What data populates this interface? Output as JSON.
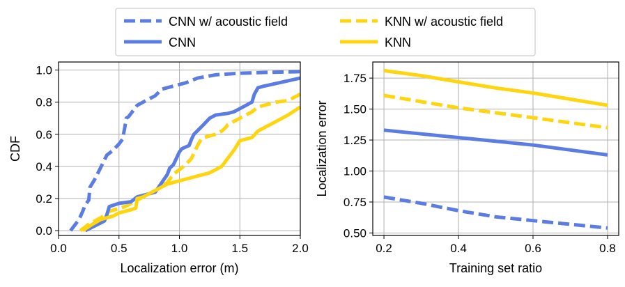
{
  "colors": {
    "cnn": "#5b7de3",
    "knn": "#ffd50f",
    "grid": "#b0b0b0",
    "axis": "#000000"
  },
  "legend": {
    "entries": [
      {
        "label": "CNN w/ acoustic field",
        "color": "#5b7de3",
        "style": "dashed"
      },
      {
        "label": "KNN w/ acoustic field",
        "color": "#ffd50f",
        "style": "dashed"
      },
      {
        "label": "CNN",
        "color": "#5b7de3",
        "style": "solid"
      },
      {
        "label": "KNN",
        "color": "#ffd50f",
        "style": "solid"
      }
    ]
  },
  "chart_data": [
    {
      "type": "line",
      "title": "",
      "xlabel": "Localization error (m)",
      "ylabel": "CDF",
      "xlim": [
        0.0,
        2.0
      ],
      "ylim": [
        -0.03,
        1.05
      ],
      "xticks": [
        0.0,
        0.5,
        1.0,
        1.5,
        2.0
      ],
      "xtick_labels": [
        "0.0",
        "0.5",
        "1.0",
        "1.5",
        "2.0"
      ],
      "yticks": [
        0.0,
        0.2,
        0.4,
        0.6,
        0.8,
        1.0
      ],
      "ytick_labels": [
        "0.0",
        "0.2",
        "0.4",
        "0.6",
        "0.8",
        "1.0"
      ],
      "grid": true,
      "series": [
        {
          "name": "CNN w/ acoustic field",
          "color": "#5b7de3",
          "style": "dashed",
          "x": [
            0.1,
            0.17,
            0.2,
            0.22,
            0.25,
            0.26,
            0.3,
            0.34,
            0.38,
            0.4,
            0.45,
            0.5,
            0.53,
            0.55,
            0.56,
            0.58,
            0.65,
            0.7,
            0.8,
            0.84,
            0.85,
            0.95,
            1.05,
            1.15,
            1.3,
            1.5,
            1.7,
            2.0
          ],
          "y": [
            0.0,
            0.07,
            0.12,
            0.16,
            0.19,
            0.27,
            0.32,
            0.38,
            0.44,
            0.47,
            0.5,
            0.54,
            0.57,
            0.65,
            0.7,
            0.71,
            0.78,
            0.8,
            0.84,
            0.87,
            0.88,
            0.9,
            0.92,
            0.95,
            0.97,
            0.98,
            0.985,
            0.99
          ]
        },
        {
          "name": "KNN w/ acoustic field",
          "color": "#ffd50f",
          "style": "dashed",
          "x": [
            0.18,
            0.25,
            0.35,
            0.42,
            0.55,
            0.65,
            0.7,
            0.8,
            0.9,
            0.95,
            1.0,
            1.05,
            1.1,
            1.15,
            1.18,
            1.2,
            1.25,
            1.3,
            1.35,
            1.38,
            1.4,
            1.45,
            1.5,
            1.55,
            1.6,
            1.65,
            1.8,
            1.9,
            2.0
          ],
          "y": [
            0.0,
            0.04,
            0.08,
            0.12,
            0.15,
            0.19,
            0.21,
            0.25,
            0.3,
            0.35,
            0.38,
            0.41,
            0.45,
            0.53,
            0.57,
            0.58,
            0.59,
            0.6,
            0.62,
            0.64,
            0.66,
            0.68,
            0.7,
            0.72,
            0.74,
            0.77,
            0.8,
            0.81,
            0.85
          ]
        },
        {
          "name": "CNN",
          "color": "#5b7de3",
          "style": "solid",
          "x": [
            0.22,
            0.3,
            0.38,
            0.4,
            0.42,
            0.5,
            0.6,
            0.65,
            0.7,
            0.8,
            0.9,
            0.92,
            0.95,
            1.0,
            1.02,
            1.08,
            1.1,
            1.12,
            1.2,
            1.25,
            1.3,
            1.4,
            1.45,
            1.5,
            1.55,
            1.6,
            1.62,
            1.65,
            1.7,
            2.0
          ],
          "y": [
            0.0,
            0.03,
            0.06,
            0.1,
            0.15,
            0.17,
            0.18,
            0.21,
            0.22,
            0.24,
            0.35,
            0.39,
            0.41,
            0.49,
            0.51,
            0.53,
            0.57,
            0.6,
            0.66,
            0.7,
            0.72,
            0.73,
            0.74,
            0.76,
            0.78,
            0.8,
            0.85,
            0.89,
            0.9,
            0.95
          ]
        },
        {
          "name": "KNN",
          "color": "#ffd50f",
          "style": "solid",
          "x": [
            0.2,
            0.28,
            0.35,
            0.4,
            0.45,
            0.5,
            0.55,
            0.6,
            0.64,
            0.65,
            0.7,
            0.8,
            0.9,
            0.95,
            1.0,
            1.05,
            1.1,
            1.15,
            1.2,
            1.25,
            1.3,
            1.35,
            1.4,
            1.45,
            1.5,
            1.55,
            1.6,
            1.65,
            1.7,
            1.8,
            1.9,
            2.0
          ],
          "y": [
            0.0,
            0.04,
            0.07,
            0.08,
            0.09,
            0.11,
            0.12,
            0.13,
            0.14,
            0.2,
            0.21,
            0.25,
            0.29,
            0.3,
            0.31,
            0.32,
            0.33,
            0.34,
            0.35,
            0.36,
            0.38,
            0.4,
            0.45,
            0.5,
            0.56,
            0.57,
            0.58,
            0.62,
            0.64,
            0.68,
            0.72,
            0.77
          ]
        }
      ]
    },
    {
      "type": "line",
      "title": "",
      "xlabel": "Training set ratio",
      "ylabel": "Localization error",
      "xlim": [
        0.17,
        0.83
      ],
      "ylim": [
        0.48,
        1.88
      ],
      "xticks": [
        0.2,
        0.4,
        0.6,
        0.8
      ],
      "xtick_labels": [
        "0.2",
        "0.4",
        "0.6",
        "0.8"
      ],
      "yticks": [
        0.5,
        0.75,
        1.0,
        1.25,
        1.5,
        1.75
      ],
      "ytick_labels": [
        "0.50",
        "0.75",
        "1.00",
        "1.25",
        "1.50",
        "1.75"
      ],
      "grid": true,
      "series": [
        {
          "name": "CNN w/ acoustic field",
          "color": "#5b7de3",
          "style": "dashed",
          "x": [
            0.2,
            0.3,
            0.4,
            0.5,
            0.6,
            0.7,
            0.8
          ],
          "y": [
            0.79,
            0.74,
            0.68,
            0.63,
            0.6,
            0.57,
            0.54
          ]
        },
        {
          "name": "KNN w/ acoustic field",
          "color": "#ffd50f",
          "style": "dashed",
          "x": [
            0.2,
            0.3,
            0.4,
            0.5,
            0.6,
            0.7,
            0.8
          ],
          "y": [
            1.61,
            1.56,
            1.51,
            1.47,
            1.43,
            1.39,
            1.35
          ]
        },
        {
          "name": "CNN",
          "color": "#5b7de3",
          "style": "solid",
          "x": [
            0.2,
            0.3,
            0.4,
            0.5,
            0.6,
            0.7,
            0.8
          ],
          "y": [
            1.33,
            1.3,
            1.27,
            1.24,
            1.21,
            1.17,
            1.13
          ]
        },
        {
          "name": "KNN",
          "color": "#ffd50f",
          "style": "solid",
          "x": [
            0.2,
            0.3,
            0.4,
            0.5,
            0.6,
            0.7,
            0.8
          ],
          "y": [
            1.81,
            1.77,
            1.72,
            1.67,
            1.63,
            1.58,
            1.53
          ]
        }
      ]
    }
  ]
}
